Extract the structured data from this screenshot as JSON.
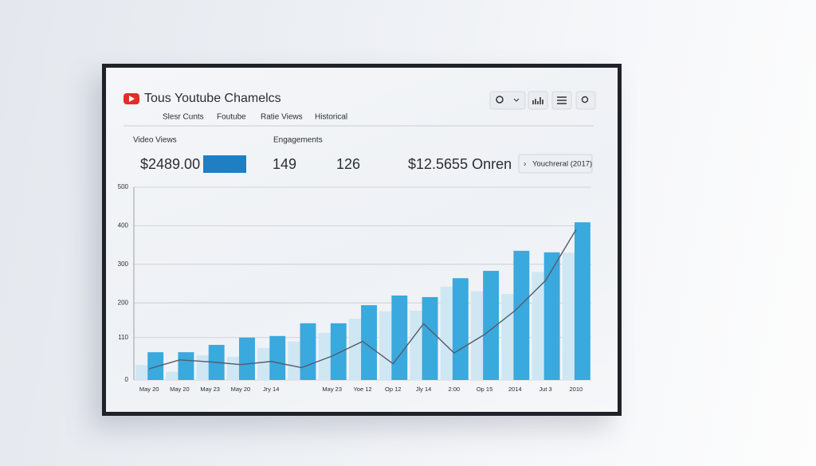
{
  "header": {
    "title": "Tous Youtube Chamelcs"
  },
  "tabs": [
    "Slesr Cunts",
    "Foutube",
    "Ratie Views",
    "Historical"
  ],
  "stats": {
    "video_label": "Video Views",
    "engage_label": "Engagements",
    "video_value": "$2489.00",
    "engage_a": "149",
    "engage_b": "126",
    "revenue": "$12.5655 Onren",
    "button": "Youchreral (2017)"
  },
  "chart_data": {
    "type": "bar",
    "categories": [
      "May 20",
      "May 20",
      "May 23",
      "May 20",
      "Jry 14",
      null,
      "May 23",
      "Yoe 12",
      "Op 12",
      "Jly 14",
      "2:00",
      "Op 15",
      "2014",
      "Jut 3",
      "2010"
    ],
    "series": [
      {
        "name": "light",
        "color": "#cfe7f3",
        "values": [
          39,
          21,
          64,
          60,
          83,
          100,
          122,
          159,
          178,
          180,
          242,
          230,
          223,
          280,
          330
        ]
      },
      {
        "name": "dark",
        "color": "#3aa9dd",
        "values": [
          72,
          72,
          91,
          110,
          114,
          147,
          147,
          194,
          219,
          215,
          264,
          283,
          335,
          331,
          409
        ]
      },
      {
        "name": "line",
        "color": "#565b6b",
        "values": [
          29,
          52,
          47,
          40,
          48,
          32,
          62,
          100,
          42,
          146,
          70,
          118,
          180,
          258,
          390
        ]
      }
    ],
    "ylim": [
      0,
      500
    ],
    "yticks": [
      0,
      110,
      200,
      300,
      400,
      500
    ],
    "grid": true
  }
}
